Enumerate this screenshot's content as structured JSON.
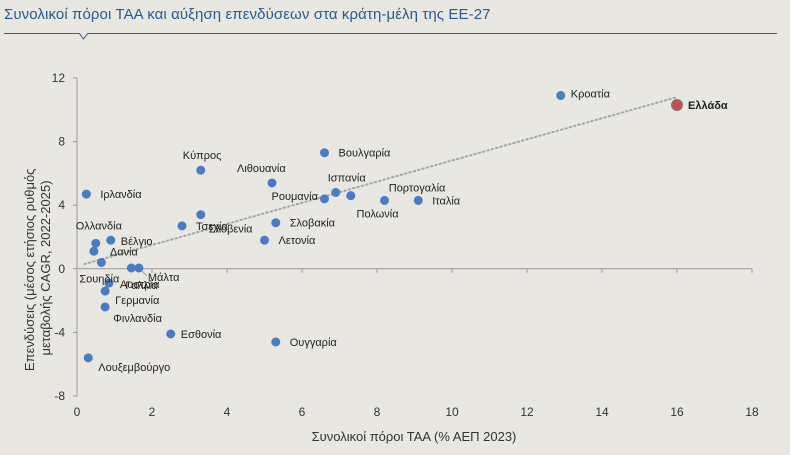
{
  "title": "Συνολικοί πόροι ΤΑΑ και αύξηση επενδύσεων στα κράτη-μέλη της ΕΕ-27",
  "chart_data": {
    "type": "scatter",
    "xlabel": "Συνολικοί  πόροι ΤΑΑ (% ΑΕΠ 2023)",
    "ylabel_lines": [
      "Επενδύσεις (μέσος ετήσιος ρυθμός",
      "μεταβολής CAGR, 2022-2025)"
    ],
    "xlim": [
      0,
      18
    ],
    "ylim": [
      -8,
      12
    ],
    "xticks": [
      "0",
      "2",
      "4",
      "6",
      "8",
      "10",
      "12",
      "14",
      "16",
      "18"
    ],
    "yticks": [
      "12",
      "8",
      "4",
      "0",
      "-4",
      "-8"
    ],
    "grid": false,
    "trendline": {
      "style": "dotted",
      "x": [
        0.2,
        16
      ],
      "y": [
        0.3,
        10.8
      ]
    },
    "colors": {
      "point": "#4a7cbf",
      "highlight": "#c0504d",
      "trend": "#a5a5a5",
      "title": "#2a5a8f"
    },
    "points": [
      {
        "name": "Κροατία",
        "x": 12.9,
        "y": 10.9
      },
      {
        "name": "Ελλάδα",
        "x": 16.0,
        "y": 10.3,
        "highlight": true
      },
      {
        "name": "Κύπρος",
        "x": 3.3,
        "y": 6.2
      },
      {
        "name": "Βουλγαρία",
        "x": 6.6,
        "y": 7.3
      },
      {
        "name": "Λιθουανία",
        "x": 5.2,
        "y": 5.4
      },
      {
        "name": "Ισπανία",
        "x": 6.9,
        "y": 4.8
      },
      {
        "name": "Ρουμανία",
        "x": 6.6,
        "y": 4.4
      },
      {
        "name": "Πορτογαλία",
        "x": 7.3,
        "y": 4.6
      },
      {
        "name": "Πολωνία",
        "x": 8.2,
        "y": 4.3
      },
      {
        "name": "Ιταλία",
        "x": 9.1,
        "y": 4.3
      },
      {
        "name": "Ιρλανδία",
        "x": 0.25,
        "y": 4.7
      },
      {
        "name": "Σλοβενία",
        "x": 3.3,
        "y": 3.4
      },
      {
        "name": "Τσεχία",
        "x": 2.8,
        "y": 2.7
      },
      {
        "name": "Σλοβακία",
        "x": 5.3,
        "y": 2.9
      },
      {
        "name": "Λετονία",
        "x": 5.0,
        "y": 1.8
      },
      {
        "name": "Ολλανδία",
        "x": 0.5,
        "y": 1.6
      },
      {
        "name": "Βέλγιο",
        "x": 0.9,
        "y": 1.8
      },
      {
        "name": "Δανία",
        "x": 0.45,
        "y": 1.1
      },
      {
        "name": "Σουηδία",
        "x": 0.65,
        "y": 0.4
      },
      {
        "name": "Γαλλία",
        "x": 1.45,
        "y": 0.05
      },
      {
        "name": "Μάλτα",
        "x": 1.65,
        "y": 0.05
      },
      {
        "name": "Αυστρία",
        "x": 0.85,
        "y": -0.9
      },
      {
        "name": "Γερμανία",
        "x": 0.75,
        "y": -1.4
      },
      {
        "name": "Φινλανδία",
        "x": 0.75,
        "y": -2.4
      },
      {
        "name": "Εσθονία",
        "x": 2.5,
        "y": -4.1
      },
      {
        "name": "Ουγγαρία",
        "x": 5.3,
        "y": -4.6
      },
      {
        "name": "Λουξεμβούργο",
        "x": 0.3,
        "y": -5.6
      }
    ]
  }
}
